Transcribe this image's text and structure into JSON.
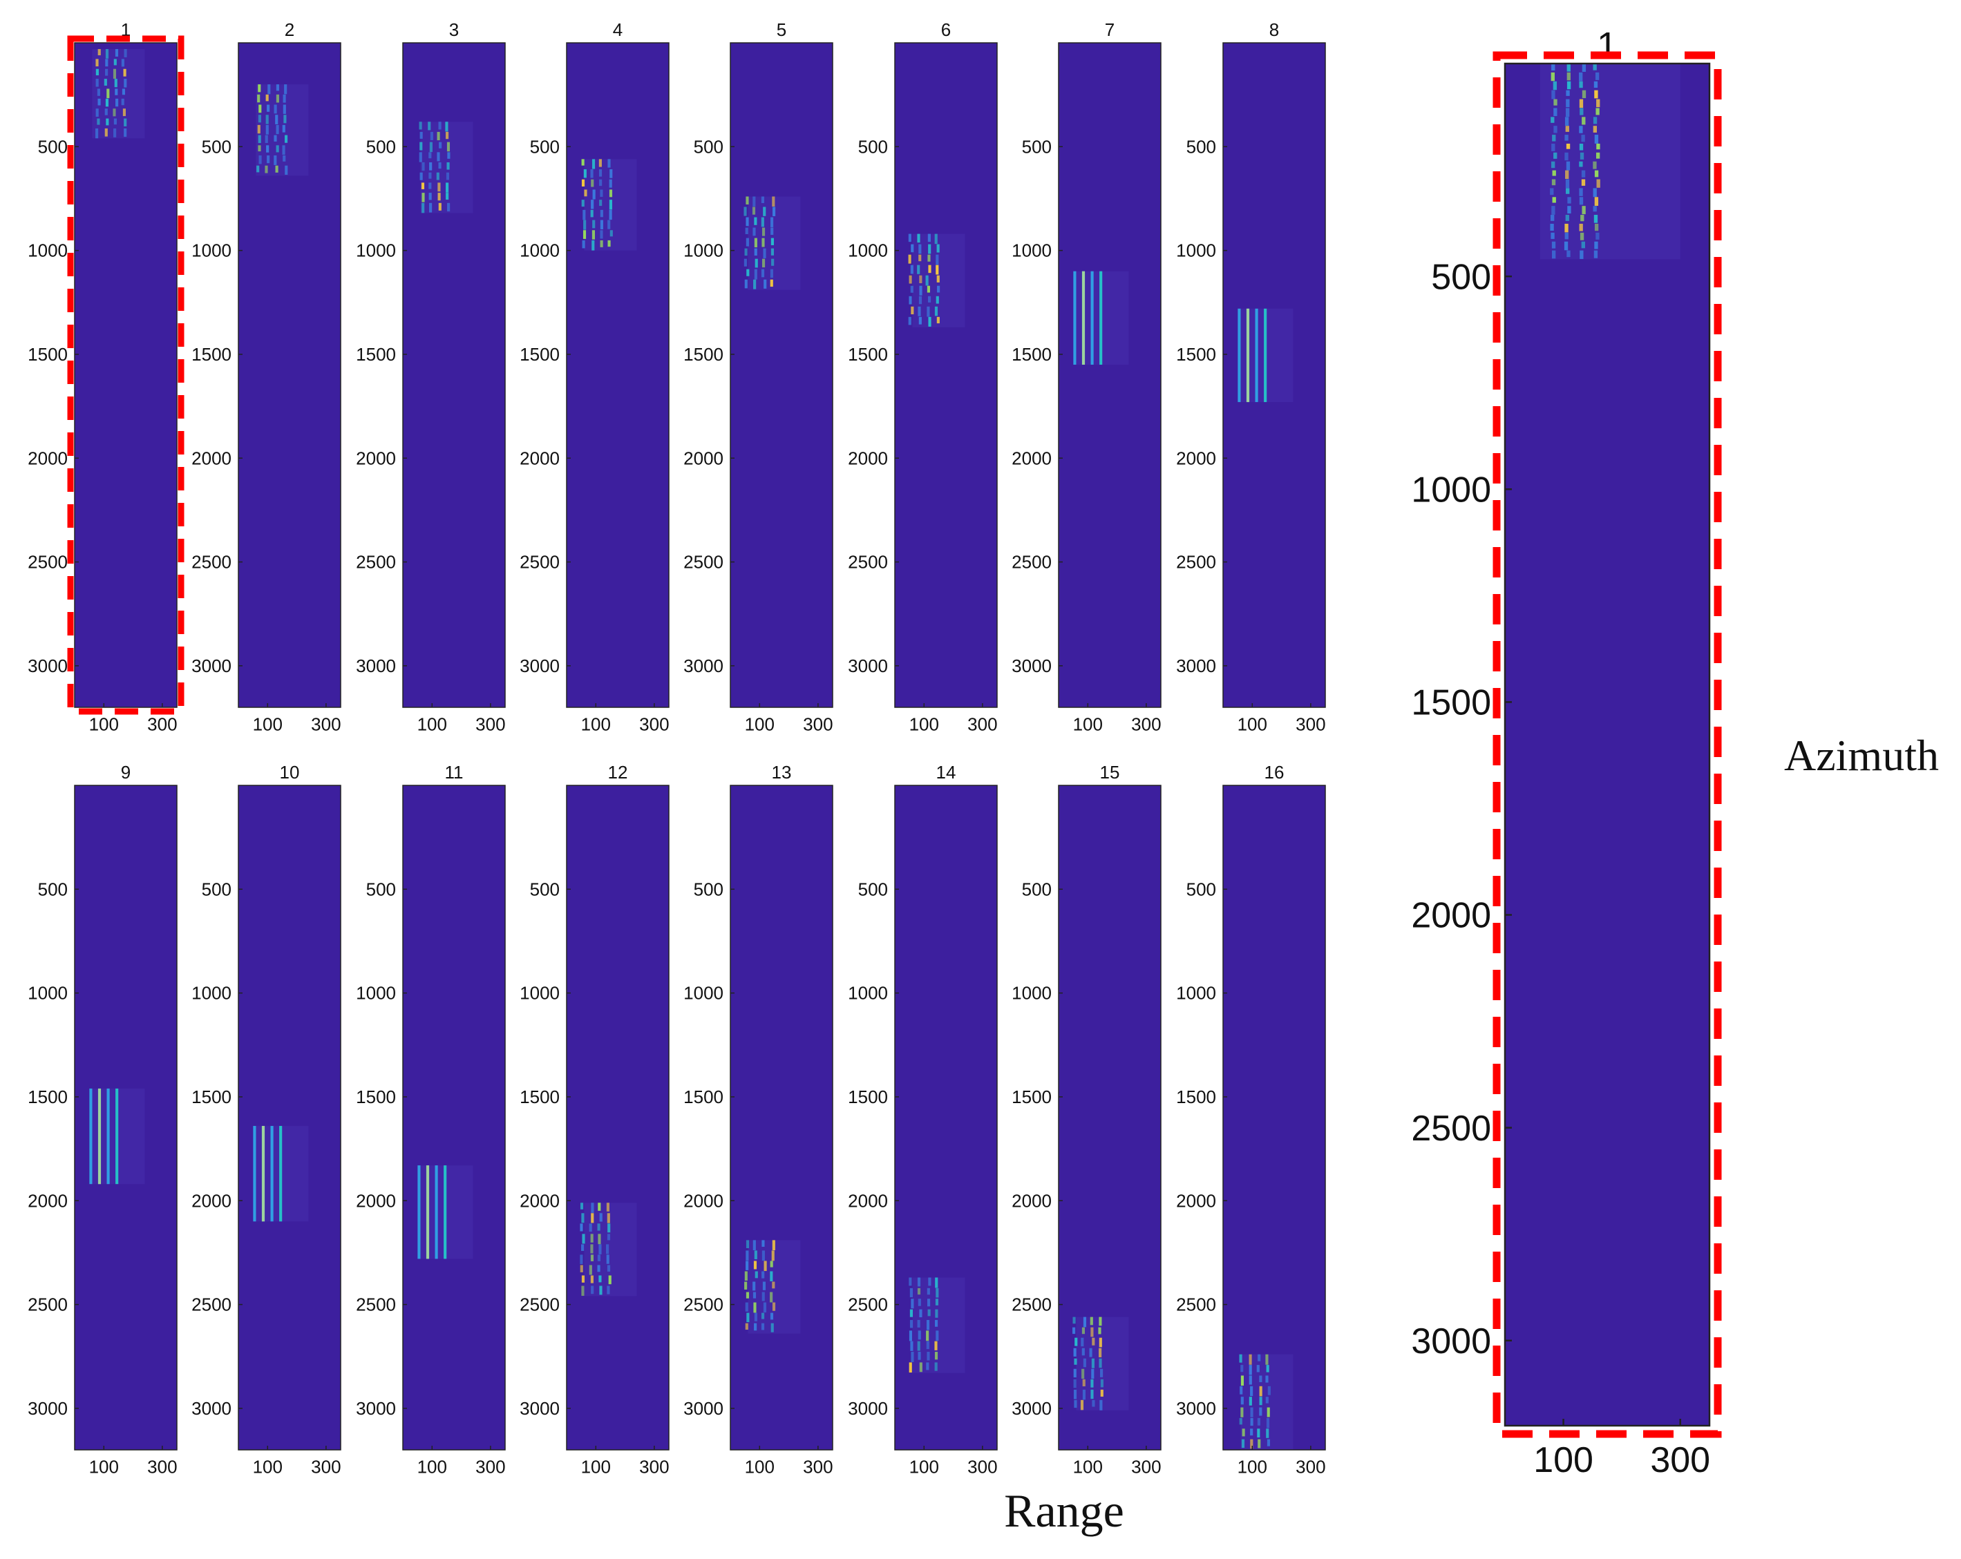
{
  "figure": {
    "xlabel": "Range",
    "ylabel": "Azimuth"
  },
  "chart_data": {
    "type": "heatmap",
    "xlabel": "Range",
    "ylabel": "Azimuth",
    "xlim": [
      0,
      350
    ],
    "ylim": [
      3200,
      0
    ],
    "x_ticks": [
      100,
      300
    ],
    "y_ticks": [
      500,
      1000,
      1500,
      2000,
      2500,
      3000
    ],
    "background_color": "#3d1f9e",
    "highlight_color": "#ff0000",
    "subplots": [
      {
        "title": "1",
        "signal": {
          "azimuth": [
            30,
            460
          ],
          "range": [
            60,
            240
          ],
          "center": 125,
          "pattern": "speckle"
        },
        "highlighted": true
      },
      {
        "title": "2",
        "signal": {
          "azimuth": [
            200,
            640
          ],
          "range": [
            60,
            240
          ],
          "center": 115,
          "pattern": "speckle"
        }
      },
      {
        "title": "3",
        "signal": {
          "azimuth": [
            380,
            820
          ],
          "range": [
            60,
            240
          ],
          "center": 110,
          "pattern": "speckle"
        }
      },
      {
        "title": "4",
        "signal": {
          "azimuth": [
            560,
            1000
          ],
          "range": [
            60,
            240
          ],
          "center": 105,
          "pattern": "speckle"
        }
      },
      {
        "title": "5",
        "signal": {
          "azimuth": [
            740,
            1190
          ],
          "range": [
            60,
            240
          ],
          "center": 100,
          "pattern": "speckle"
        }
      },
      {
        "title": "6",
        "signal": {
          "azimuth": [
            920,
            1370
          ],
          "range": [
            60,
            240
          ],
          "center": 100,
          "pattern": "speckle"
        }
      },
      {
        "title": "7",
        "signal": {
          "azimuth": [
            1100,
            1550
          ],
          "range": [
            60,
            240
          ],
          "center": 100,
          "pattern": "lines"
        }
      },
      {
        "title": "8",
        "signal": {
          "azimuth": [
            1280,
            1730
          ],
          "range": [
            60,
            240
          ],
          "center": 100,
          "pattern": "lines"
        }
      },
      {
        "title": "9",
        "signal": {
          "azimuth": [
            1460,
            1920
          ],
          "range": [
            60,
            240
          ],
          "center": 100,
          "pattern": "lines"
        }
      },
      {
        "title": "10",
        "signal": {
          "azimuth": [
            1640,
            2100
          ],
          "range": [
            60,
            240
          ],
          "center": 100,
          "pattern": "lines"
        }
      },
      {
        "title": "11",
        "signal": {
          "azimuth": [
            1830,
            2280
          ],
          "range": [
            60,
            240
          ],
          "center": 100,
          "pattern": "lines"
        }
      },
      {
        "title": "12",
        "signal": {
          "azimuth": [
            2010,
            2460
          ],
          "range": [
            60,
            240
          ],
          "center": 100,
          "pattern": "speckle"
        }
      },
      {
        "title": "13",
        "signal": {
          "azimuth": [
            2190,
            2640
          ],
          "range": [
            60,
            240
          ],
          "center": 100,
          "pattern": "speckle"
        }
      },
      {
        "title": "14",
        "signal": {
          "azimuth": [
            2370,
            2830
          ],
          "range": [
            60,
            240
          ],
          "center": 100,
          "pattern": "speckle"
        }
      },
      {
        "title": "15",
        "signal": {
          "azimuth": [
            2560,
            3010
          ],
          "range": [
            60,
            240
          ],
          "center": 100,
          "pattern": "speckle"
        }
      },
      {
        "title": "16",
        "signal": {
          "azimuth": [
            2740,
            3200
          ],
          "range": [
            60,
            240
          ],
          "center": 110,
          "pattern": "speckle"
        }
      }
    ],
    "zoom": {
      "title": "1",
      "signal": {
        "azimuth": [
          0,
          460
        ],
        "range": [
          60,
          300
        ],
        "center": 120,
        "pattern": "speckle"
      },
      "highlighted": true
    }
  }
}
